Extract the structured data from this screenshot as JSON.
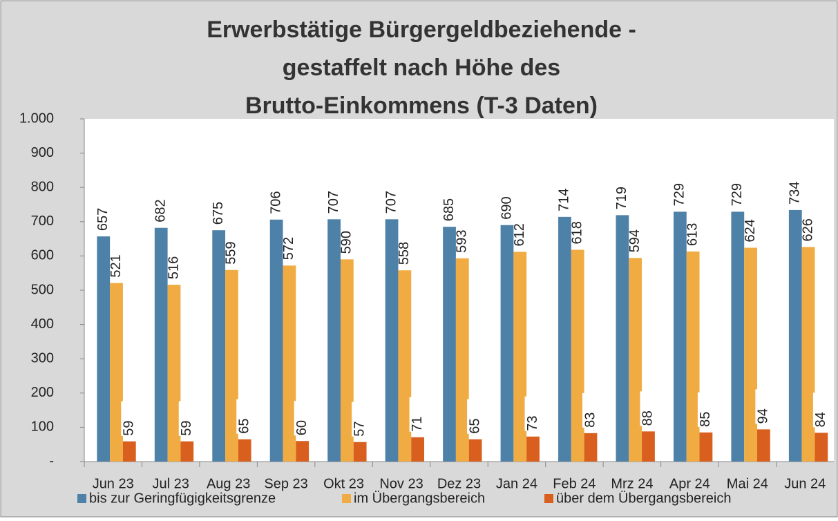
{
  "chart_data": {
    "type": "bar",
    "title": [
      "Erwerbstätige Bürgergeldbeziehende -",
      "gestaffelt nach Höhe des",
      "Brutto-Einkommens   (T-3 Daten)"
    ],
    "categories": [
      "Jun 23",
      "Jul 23",
      "Aug 23",
      "Sep 23",
      "Okt 23",
      "Nov 23",
      "Dez 23",
      "Jan 24",
      "Feb 24",
      "Mrz 24",
      "Apr 24",
      "Mai 24",
      "Jun 24"
    ],
    "series": [
      {
        "name": "bis zur Geringfügigkeitsgrenze",
        "color": "#4e81a8",
        "values": [
          657,
          682,
          675,
          706,
          707,
          707,
          685,
          690,
          714,
          719,
          729,
          729,
          734
        ]
      },
      {
        "name": "im Übergangsbereich",
        "color": "#f0ac42",
        "values": [
          521,
          516,
          559,
          572,
          590,
          558,
          593,
          612,
          618,
          594,
          613,
          624,
          626
        ]
      },
      {
        "name": "über dem Übergangsbereich",
        "color": "#d95f1e",
        "values": [
          59,
          59,
          65,
          60,
          57,
          71,
          65,
          73,
          83,
          88,
          85,
          94,
          84
        ]
      }
    ],
    "ylim": [
      0,
      1000
    ],
    "yticks": [
      {
        "value": 0,
        "label": "-"
      },
      100,
      200,
      300,
      400,
      500,
      600,
      700,
      800,
      900,
      {
        "value": 1000,
        "label": "1.000"
      }
    ],
    "grid": false
  }
}
